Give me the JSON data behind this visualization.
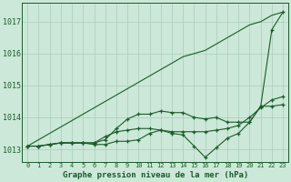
{
  "background_color": "#cce8d8",
  "grid_color": "#aaccbb",
  "line_color": "#1a5c2a",
  "title": "Graphe pression niveau de la mer (hPa)",
  "xlabel_values": [
    0,
    1,
    2,
    3,
    4,
    5,
    6,
    7,
    8,
    9,
    10,
    11,
    12,
    13,
    14,
    15,
    16,
    17,
    18,
    19,
    20,
    21,
    22,
    23
  ],
  "ylim": [
    1012.6,
    1017.6
  ],
  "yticks": [
    1013,
    1014,
    1015,
    1016,
    1017
  ],
  "series": {
    "line_straight": [
      1013.1,
      1013.3,
      1013.5,
      1013.7,
      1013.9,
      1014.1,
      1014.3,
      1014.5,
      1014.7,
      1014.9,
      1015.1,
      1015.3,
      1015.5,
      1015.7,
      1015.9,
      1016.0,
      1016.1,
      1016.3,
      1016.5,
      1016.7,
      1016.9,
      1017.0,
      1017.2,
      1017.3
    ],
    "line_mid": [
      1013.1,
      1013.1,
      1013.15,
      1013.2,
      1013.2,
      1013.2,
      1013.2,
      1013.4,
      1013.55,
      1013.6,
      1013.65,
      1013.65,
      1013.6,
      1013.55,
      1013.55,
      1013.55,
      1013.55,
      1013.6,
      1013.65,
      1013.75,
      1014.0,
      1014.3,
      1014.55,
      1014.65
    ],
    "line_dip1": [
      1013.1,
      1013.1,
      1013.15,
      1013.2,
      1013.2,
      1013.2,
      1013.2,
      1013.3,
      1013.65,
      1013.95,
      1014.1,
      1014.1,
      1014.2,
      1014.15,
      1014.15,
      1014.0,
      1013.95,
      1014.0,
      1013.85,
      1013.85,
      1013.85,
      1014.35,
      1014.35,
      1014.4
    ],
    "line_dip2": [
      1013.1,
      1013.1,
      1013.15,
      1013.2,
      1013.2,
      1013.2,
      1013.15,
      1013.15,
      1013.25,
      1013.25,
      1013.3,
      1013.5,
      1013.6,
      1013.5,
      1013.45,
      1013.1,
      1012.75,
      1013.05,
      1013.35,
      1013.5,
      1013.85,
      1014.35,
      1016.75,
      1017.3
    ]
  }
}
